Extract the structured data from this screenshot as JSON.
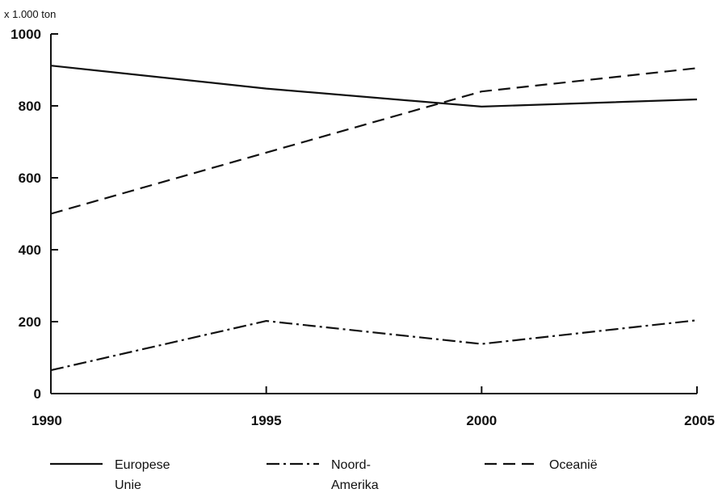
{
  "chart_data": {
    "type": "line",
    "title": "",
    "xlabel": "",
    "ylabel": "x 1.000 ton",
    "x": [
      1990,
      1995,
      2000,
      2005
    ],
    "x_tick_labels": [
      "1990",
      "1995",
      "2000",
      "2005"
    ],
    "y_tick_labels": [
      "0",
      "200",
      "400",
      "600",
      "800",
      "1000"
    ],
    "ylim": [
      0,
      1000
    ],
    "grid": false,
    "legend_position": "bottom",
    "series": [
      {
        "name_lines": [
          "Europese",
          "Unie"
        ],
        "style": "solid",
        "values": [
          912,
          848,
          798,
          818
        ]
      },
      {
        "name_lines": [
          "Noord-",
          "Amerika"
        ],
        "style": "dash-dot",
        "values": [
          65,
          202,
          138,
          204
        ]
      },
      {
        "name_lines": [
          "Oceanië"
        ],
        "style": "dashed",
        "values": [
          500,
          670,
          840,
          905
        ]
      }
    ]
  }
}
